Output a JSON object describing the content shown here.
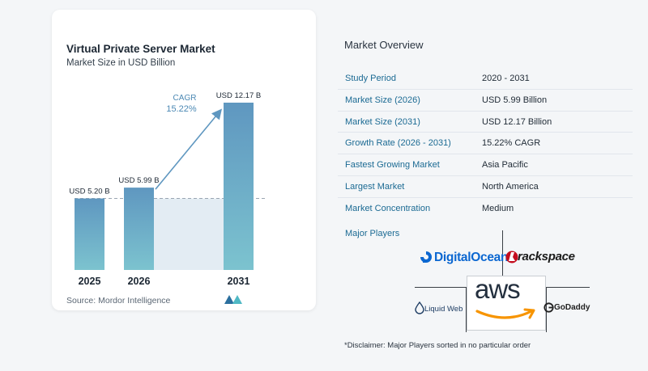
{
  "chart_data": {
    "type": "bar",
    "title": "Virtual Private Server Market",
    "subtitle": "Market Size in USD Billion",
    "categories": [
      "2025",
      "2026",
      "2031"
    ],
    "values": [
      5.2,
      5.99,
      12.17
    ],
    "value_labels": [
      "USD 5.20 B",
      "USD 5.99 B",
      "USD 12.17 B"
    ],
    "ylim": [
      0,
      12.17
    ],
    "annotation": {
      "label": "CAGR",
      "value": "15.22%"
    },
    "baseline_reference": 5.2,
    "grid": false,
    "colors": {
      "bar_top": "#5f97c0",
      "bar_bottom": "#7cc3cf",
      "band": "#e3ecf3",
      "arrow": "#5f97c0",
      "annotation": "#4c89b4"
    }
  },
  "source": "Source:  Mordor Intelligence",
  "overview": {
    "title": "Market Overview",
    "rows": [
      {
        "label": "Study Period",
        "value": "2020 - 2031"
      },
      {
        "label": "Market Size (2026)",
        "value": "USD 5.99 Billion"
      },
      {
        "label": "Market Size (2031)",
        "value": "USD 12.17 Billion"
      },
      {
        "label": "Growth Rate (2026 - 2031)",
        "value": "15.22% CAGR"
      },
      {
        "label": "Fastest Growing Market",
        "value": "Asia Pacific"
      },
      {
        "label": "Largest Market",
        "value": "North America"
      },
      {
        "label": "Market Concentration",
        "value": "Medium"
      }
    ]
  },
  "players": {
    "title": "Major Players",
    "logos": [
      "DigitalOcean",
      "rackspace",
      "aws",
      "Liquid Web",
      "GoDaddy"
    ]
  },
  "disclaimer": "*Disclaimer: Major Players sorted in no particular order"
}
